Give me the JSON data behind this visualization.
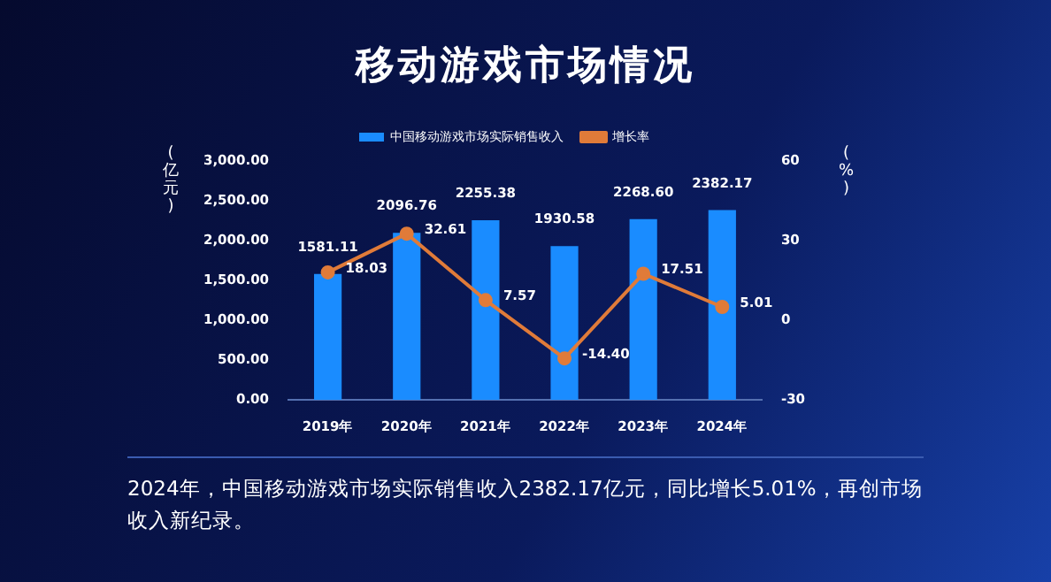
{
  "chart_data": {
    "type": "bar",
    "title": "移动游戏市场情况",
    "ylabel": "(亿元)",
    "y2label": "(%)",
    "categories": [
      "2019年",
      "2020年",
      "2021年",
      "2022年",
      "2023年",
      "2024年"
    ],
    "series": [
      {
        "name": "中国移动游戏市场实际销售收入",
        "type": "bar",
        "color": "#1a8cff",
        "values": [
          1581.11,
          2096.76,
          2255.38,
          1930.58,
          2268.6,
          2382.17
        ],
        "value_labels": [
          "1581.11",
          "2096.76",
          "2255.38",
          "1930.58",
          "2268.60",
          "2382.17"
        ]
      },
      {
        "name": "增长率",
        "type": "line",
        "axis": "y2",
        "color": "#e07b39",
        "values": [
          18.03,
          32.61,
          7.57,
          -14.4,
          17.51,
          5.01
        ],
        "value_labels": [
          "18.03",
          "32.61",
          "7.57",
          "-14.40",
          "17.51",
          "5.01"
        ]
      }
    ],
    "ylim": [
      0,
      3000
    ],
    "yticks": [
      {
        "value": 0,
        "label": "0.00"
      },
      {
        "value": 500,
        "label": "500.00"
      },
      {
        "value": 1000,
        "label": "1,000.00"
      },
      {
        "value": 1500,
        "label": "1,500.00"
      },
      {
        "value": 2000,
        "label": "2,000.00"
      },
      {
        "value": 2500,
        "label": "2,500.00"
      },
      {
        "value": 3000,
        "label": "3,000.00"
      }
    ],
    "y2lim": [
      -30,
      60
    ],
    "y2ticks": [
      -30,
      0,
      30,
      60
    ],
    "legend": "top",
    "grid": false,
    "marker": "circle",
    "annotations": [
      "2024年，中国移动游戏市场实际销售收入2382.17亿元，同比增长5.01%，再创市场收入新纪录。"
    ]
  }
}
